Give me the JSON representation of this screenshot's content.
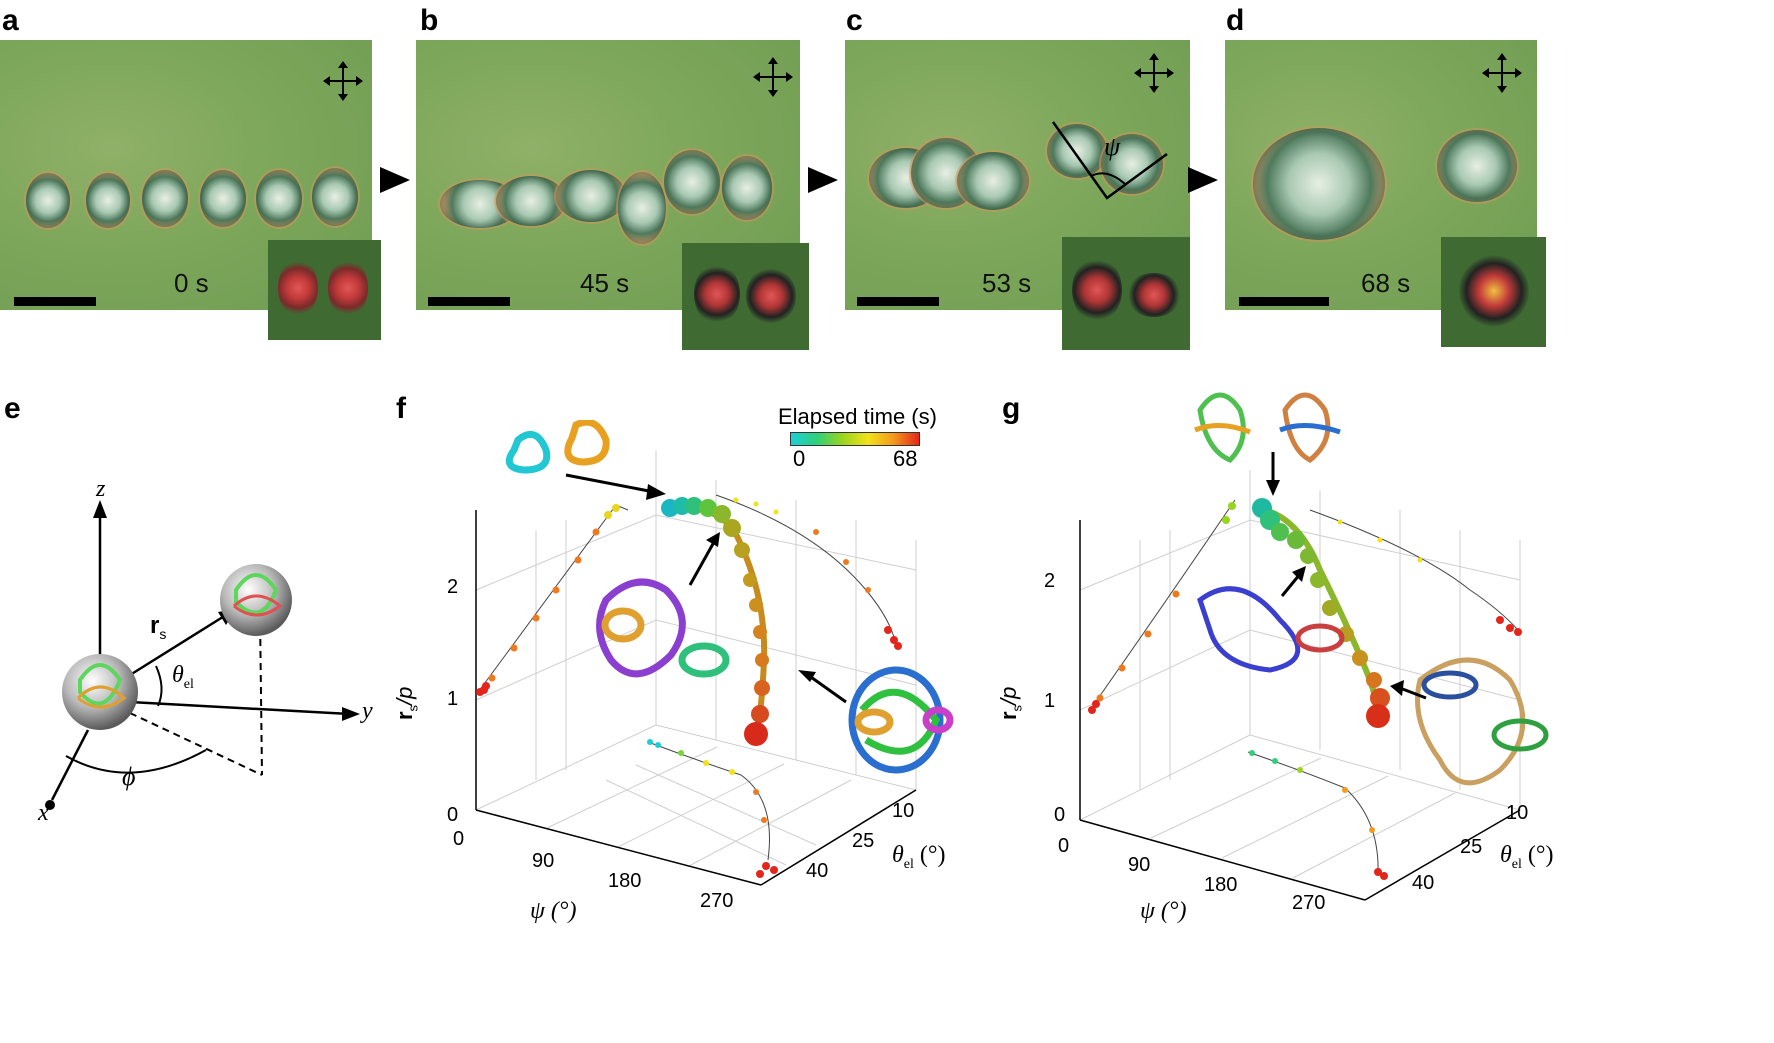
{
  "panels_top": [
    {
      "letter": "a",
      "time": "0 s"
    },
    {
      "letter": "b",
      "time": "45 s"
    },
    {
      "letter": "c",
      "time": "53 s",
      "angle": "ψ"
    },
    {
      "letter": "d",
      "time": "68 s"
    }
  ],
  "panel_e": {
    "letter": "e",
    "z": "z",
    "y": "y",
    "x": "x",
    "r": "r",
    "r_sub": "s",
    "theta": "θ",
    "theta_sub": "el",
    "phi": "ϕ"
  },
  "panel_f": {
    "letter": "f",
    "colorbar_title": "Elapsed time (s)",
    "colorbar_min": "0",
    "colorbar_max": "68",
    "z_ticks": [
      "0",
      "1",
      "2"
    ],
    "x_ticks": [
      "0",
      "90",
      "180",
      "270"
    ],
    "y_ticks": [
      "10",
      "25",
      "40"
    ],
    "z_label_r": "r",
    "z_label_sub": "s",
    "z_label_rest": "/p",
    "x_label": "ψ (°)",
    "y_label_theta": "θ",
    "y_label_sub": "el",
    "y_label_rest": " (°)"
  },
  "panel_g": {
    "letter": "g",
    "z_ticks": [
      "0",
      "1",
      "2"
    ],
    "x_ticks": [
      "0",
      "90",
      "180",
      "270"
    ],
    "y_ticks": [
      "10",
      "25",
      "40"
    ],
    "z_label_r": "r",
    "z_label_sub": "s",
    "z_label_rest": "/p",
    "x_label": "ψ (°)",
    "y_label_theta": "θ",
    "y_label_sub": "el",
    "y_label_rest": " (°)"
  },
  "colors": {
    "micro_bg": "#7da75b",
    "inset_bg": "#3f6b33",
    "colormap": [
      "#19d0d8",
      "#2fd07c",
      "#9ad41f",
      "#f2e21a",
      "#f59a1b",
      "#e3251b"
    ]
  }
}
